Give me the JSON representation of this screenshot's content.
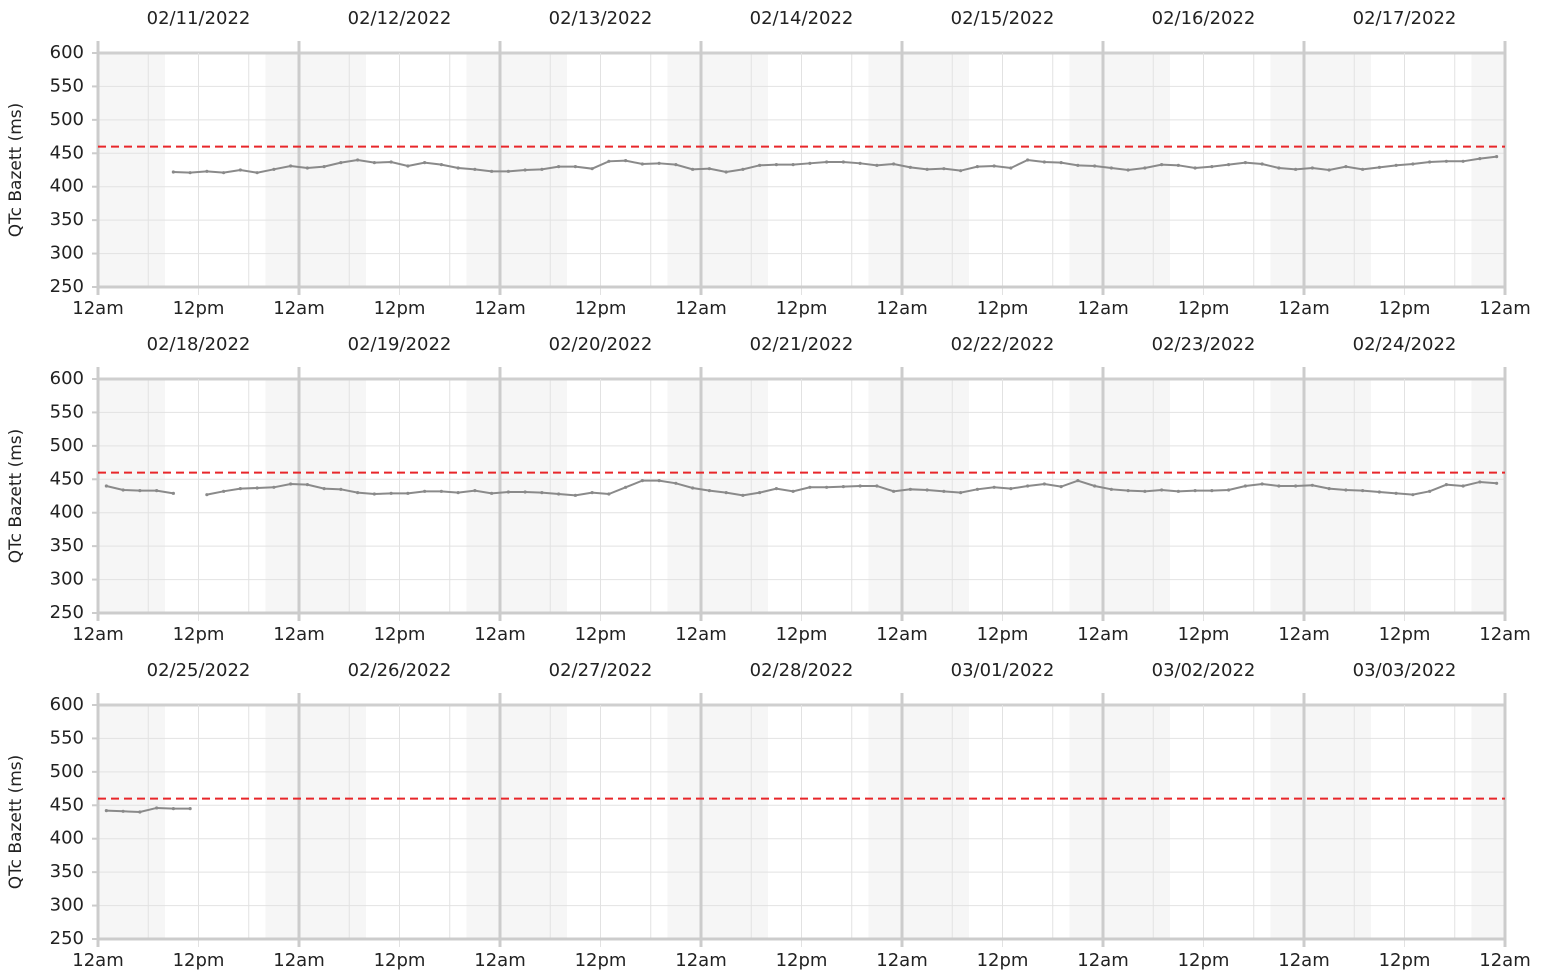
{
  "chart_data": [
    {
      "type": "line",
      "ylabel": "QTc Bazett (ms)",
      "dates": [
        "02/11/2022",
        "02/12/2022",
        "02/13/2022",
        "02/14/2022",
        "02/15/2022",
        "02/16/2022",
        "02/17/2022"
      ],
      "x": [
        9,
        11,
        13,
        15,
        17,
        19,
        21,
        23,
        25,
        27,
        29,
        31,
        33,
        35,
        37,
        39,
        41,
        43,
        45,
        47,
        49,
        51,
        53,
        55,
        57,
        59,
        61,
        63,
        65,
        67,
        69,
        71,
        73,
        75,
        77,
        79,
        81,
        83,
        85,
        87,
        89,
        91,
        93,
        95,
        97,
        99,
        101,
        103,
        105,
        107,
        109,
        111,
        113,
        115,
        117,
        119,
        121,
        123,
        125,
        127,
        129,
        131,
        133,
        135,
        137,
        139,
        141,
        143,
        145,
        147,
        149,
        151,
        153,
        155,
        157,
        159,
        161,
        163,
        165,
        167
      ],
      "values": [
        422,
        421,
        423,
        421,
        425,
        421,
        426,
        431,
        428,
        430,
        436,
        440,
        436,
        437,
        431,
        436,
        433,
        428,
        426,
        423,
        423,
        425,
        426,
        430,
        430,
        427,
        438,
        439,
        434,
        435,
        433,
        426,
        427,
        422,
        426,
        432,
        433,
        433,
        435,
        437,
        437,
        435,
        432,
        434,
        429,
        426,
        427,
        424,
        430,
        431,
        428,
        440,
        437,
        436,
        432,
        431,
        428,
        425,
        428,
        433,
        432,
        428,
        430,
        433,
        436,
        434,
        428,
        426,
        428,
        425,
        430,
        426,
        429,
        432,
        434,
        437,
        438,
        438,
        442,
        445
      ],
      "color": "#8a8a8a",
      "threshold": 460,
      "threshold_color": "#e8262a",
      "xlim": [
        0,
        168
      ],
      "ylim": [
        250,
        600
      ],
      "yticks": [
        250,
        300,
        350,
        400,
        450,
        500,
        550,
        600
      ],
      "xticks": [
        {
          "value": 0,
          "label": "12am"
        },
        {
          "value": 12,
          "label": "12pm"
        },
        {
          "value": 24,
          "label": "12am"
        },
        {
          "value": 36,
          "label": "12pm"
        },
        {
          "value": 48,
          "label": "12am"
        },
        {
          "value": 60,
          "label": "12pm"
        },
        {
          "value": 72,
          "label": "12am"
        },
        {
          "value": 84,
          "label": "12pm"
        },
        {
          "value": 96,
          "label": "12am"
        },
        {
          "value": 108,
          "label": "12pm"
        },
        {
          "value": 120,
          "label": "12am"
        },
        {
          "value": 132,
          "label": "12pm"
        },
        {
          "value": 144,
          "label": "12am"
        },
        {
          "value": 156,
          "label": "12pm"
        },
        {
          "value": 168,
          "label": "12am"
        }
      ],
      "xminorticks": [
        6,
        18,
        30,
        42,
        54,
        66,
        78,
        90,
        102,
        114,
        126,
        138,
        150,
        162
      ],
      "shaded_x": [
        [
          0,
          8
        ],
        [
          20,
          32
        ],
        [
          44,
          56
        ],
        [
          68,
          80
        ],
        [
          92,
          104
        ],
        [
          116,
          128
        ],
        [
          140,
          152
        ],
        [
          164,
          168
        ]
      ],
      "grid": true
    },
    {
      "type": "line",
      "ylabel": "QTc Bazett (ms)",
      "dates": [
        "02/18/2022",
        "02/19/2022",
        "02/20/2022",
        "02/21/2022",
        "02/22/2022",
        "02/23/2022",
        "02/24/2022"
      ],
      "x": [
        1,
        3,
        5,
        7,
        9,
        11,
        13,
        15,
        17,
        19,
        21,
        23,
        25,
        27,
        29,
        31,
        33,
        35,
        37,
        39,
        41,
        43,
        45,
        47,
        49,
        51,
        53,
        55,
        57,
        59,
        61,
        63,
        65,
        67,
        69,
        71,
        73,
        75,
        77,
        79,
        81,
        83,
        85,
        87,
        89,
        91,
        93,
        95,
        97,
        99,
        101,
        103,
        105,
        107,
        109,
        111,
        113,
        115,
        117,
        119,
        121,
        123,
        125,
        127,
        129,
        131,
        133,
        135,
        137,
        139,
        141,
        143,
        145,
        147,
        149,
        151,
        153,
        155,
        157,
        159,
        161,
        163,
        165,
        167
      ],
      "values": [
        440,
        434,
        433,
        433,
        429,
        null,
        427,
        432,
        436,
        437,
        438,
        443,
        442,
        436,
        435,
        430,
        428,
        429,
        429,
        432,
        432,
        430,
        433,
        429,
        431,
        431,
        430,
        428,
        426,
        430,
        428,
        438,
        448,
        448,
        444,
        437,
        433,
        430,
        426,
        430,
        436,
        432,
        438,
        438,
        439,
        440,
        440,
        432,
        435,
        434,
        432,
        430,
        435,
        438,
        436,
        440,
        443,
        439,
        448,
        440,
        435,
        433,
        432,
        434,
        432,
        433,
        433,
        434,
        440,
        443,
        440,
        440,
        441,
        436,
        434,
        433,
        431,
        429,
        427,
        432,
        442,
        440,
        446,
        444
      ],
      "color": "#8a8a8a",
      "threshold": 460,
      "threshold_color": "#e8262a",
      "xlim": [
        0,
        168
      ],
      "ylim": [
        250,
        600
      ],
      "yticks": [
        250,
        300,
        350,
        400,
        450,
        500,
        550,
        600
      ],
      "xticks": [
        {
          "value": 0,
          "label": "12am"
        },
        {
          "value": 12,
          "label": "12pm"
        },
        {
          "value": 24,
          "label": "12am"
        },
        {
          "value": 36,
          "label": "12pm"
        },
        {
          "value": 48,
          "label": "12am"
        },
        {
          "value": 60,
          "label": "12pm"
        },
        {
          "value": 72,
          "label": "12am"
        },
        {
          "value": 84,
          "label": "12pm"
        },
        {
          "value": 96,
          "label": "12am"
        },
        {
          "value": 108,
          "label": "12pm"
        },
        {
          "value": 120,
          "label": "12am"
        },
        {
          "value": 132,
          "label": "12pm"
        },
        {
          "value": 144,
          "label": "12am"
        },
        {
          "value": 156,
          "label": "12pm"
        },
        {
          "value": 168,
          "label": "12am"
        }
      ],
      "xminorticks": [
        6,
        18,
        30,
        42,
        54,
        66,
        78,
        90,
        102,
        114,
        126,
        138,
        150,
        162
      ],
      "shaded_x": [
        [
          0,
          8
        ],
        [
          20,
          32
        ],
        [
          44,
          56
        ],
        [
          68,
          80
        ],
        [
          92,
          104
        ],
        [
          116,
          128
        ],
        [
          140,
          152
        ],
        [
          164,
          168
        ]
      ],
      "grid": true
    },
    {
      "type": "line",
      "ylabel": "QTc Bazett (ms)",
      "dates": [
        "02/25/2022",
        "02/26/2022",
        "02/27/2022",
        "02/28/2022",
        "03/01/2022",
        "03/02/2022",
        "03/03/2022"
      ],
      "x": [
        1,
        3,
        5,
        7,
        9,
        11
      ],
      "values": [
        442,
        441,
        440,
        446,
        445,
        445
      ],
      "color": "#8a8a8a",
      "threshold": 460,
      "threshold_color": "#e8262a",
      "xlim": [
        0,
        168
      ],
      "ylim": [
        250,
        600
      ],
      "yticks": [
        250,
        300,
        350,
        400,
        450,
        500,
        550,
        600
      ],
      "xticks": [
        {
          "value": 0,
          "label": "12am"
        },
        {
          "value": 12,
          "label": "12pm"
        },
        {
          "value": 24,
          "label": "12am"
        },
        {
          "value": 36,
          "label": "12pm"
        },
        {
          "value": 48,
          "label": "12am"
        },
        {
          "value": 60,
          "label": "12pm"
        },
        {
          "value": 72,
          "label": "12am"
        },
        {
          "value": 84,
          "label": "12pm"
        },
        {
          "value": 96,
          "label": "12am"
        },
        {
          "value": 108,
          "label": "12pm"
        },
        {
          "value": 120,
          "label": "12am"
        },
        {
          "value": 132,
          "label": "12pm"
        },
        {
          "value": 144,
          "label": "12am"
        },
        {
          "value": 156,
          "label": "12pm"
        },
        {
          "value": 168,
          "label": "12am"
        }
      ],
      "xminorticks": [
        6,
        18,
        30,
        42,
        54,
        66,
        78,
        90,
        102,
        114,
        126,
        138,
        150,
        162
      ],
      "shaded_x": [
        [
          0,
          8
        ],
        [
          20,
          32
        ],
        [
          44,
          56
        ],
        [
          68,
          80
        ],
        [
          92,
          104
        ],
        [
          116,
          128
        ],
        [
          140,
          152
        ],
        [
          164,
          168
        ]
      ],
      "grid": true
    }
  ]
}
